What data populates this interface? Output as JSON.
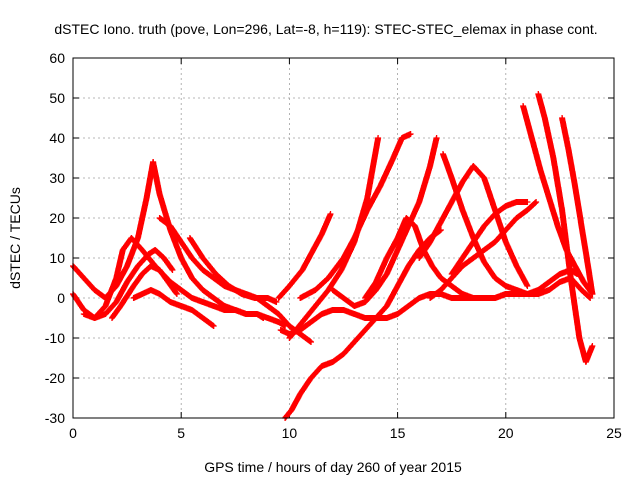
{
  "chart_data": {
    "type": "scatter",
    "title": "dSTEC Iono. truth (pove, Lon=296, Lat=-8, h=119): STEC-STEC_elemax in phase cont.",
    "xlabel": "GPS time / hours of day 260 of year 2015",
    "ylabel": "dSTEC  / TECUs",
    "xlim": [
      0,
      25
    ],
    "ylim": [
      -30,
      60
    ],
    "xticks": [
      "0",
      "5",
      "10",
      "15",
      "20",
      "25"
    ],
    "yticks": [
      "-30",
      "-20",
      "-10",
      "0",
      "10",
      "20",
      "30",
      "40",
      "50",
      "60"
    ],
    "grid": true,
    "marker": "plus",
    "color": "#ff0000",
    "series": [
      {
        "x": [
          0.0,
          0.5,
          1.0,
          1.5,
          2.0,
          2.5,
          3.0,
          3.4,
          3.7
        ],
        "y": [
          8,
          5,
          2,
          0,
          3,
          8,
          15,
          25,
          34
        ]
      },
      {
        "x": [
          3.7,
          4.0,
          4.5,
          5.0,
          5.5,
          6.0,
          6.5,
          7.0,
          7.5,
          8.0,
          8.5,
          9.0,
          9.5,
          9.8
        ],
        "y": [
          34,
          26,
          17,
          10,
          5,
          2,
          0,
          -2,
          -3,
          -4,
          -4,
          -5,
          -6,
          -7
        ]
      },
      {
        "x": [
          0.0,
          0.5,
          1.0,
          1.5,
          2.0,
          2.5,
          3.0,
          3.5,
          3.8,
          4.2,
          4.6
        ],
        "y": [
          1,
          -3,
          -5,
          -4,
          -1,
          4,
          8,
          11,
          12,
          10,
          7
        ]
      },
      {
        "x": [
          0.5,
          1.0,
          1.5,
          2.0,
          2.3,
          2.7,
          3.2,
          3.8,
          4.5,
          5.0,
          5.5,
          6.0,
          6.5,
          7.0,
          7.5,
          8.0,
          8.5,
          8.8
        ],
        "y": [
          -4,
          -5,
          -2,
          5,
          12,
          15,
          12,
          8,
          4,
          2,
          0,
          -1,
          -2,
          -3,
          -3,
          -4,
          -4,
          -5
        ]
      },
      {
        "x": [
          1.8,
          2.2,
          2.8,
          3.2,
          3.6,
          4.0,
          4.4,
          4.8
        ],
        "y": [
          -5,
          -2,
          3,
          6,
          8,
          7,
          4,
          1
        ]
      },
      {
        "x": [
          2.8,
          3.2,
          3.6,
          4.0,
          4.5,
          5.0,
          5.5,
          6.0,
          6.5
        ],
        "y": [
          0,
          1,
          2,
          1,
          -1,
          -2,
          -3,
          -5,
          -7
        ]
      },
      {
        "x": [
          4.0,
          4.5,
          5.0,
          5.5,
          6.0,
          6.5,
          7.0,
          7.5,
          8.0,
          8.5,
          9.0,
          9.5,
          10.0,
          10.5,
          11.0
        ],
        "y": [
          20,
          18,
          14,
          10,
          7,
          5,
          3,
          2,
          1,
          0,
          -2,
          -4,
          -7,
          -9,
          -11
        ]
      },
      {
        "x": [
          5.4,
          6.0,
          6.6,
          7.2,
          7.8,
          8.4,
          9.0,
          9.4
        ],
        "y": [
          15,
          10,
          6,
          3,
          1,
          0,
          0,
          -1
        ]
      },
      {
        "x": [
          9.6,
          10.0,
          10.5,
          11.0,
          11.5,
          12.0,
          12.5,
          13.0,
          13.5,
          14.0,
          14.5,
          15.0,
          15.5,
          16.0,
          16.5,
          17.0,
          17.5,
          18.0,
          18.5,
          19.0,
          19.5,
          20.0,
          20.5,
          21.0,
          21.5,
          22.0,
          22.5,
          23.0,
          23.3
        ],
        "y": [
          -8,
          -9,
          -8,
          -6,
          -4,
          -3,
          -3,
          -4,
          -5,
          -5,
          -5,
          -4,
          -2,
          0,
          1,
          1,
          0,
          0,
          0,
          0,
          0,
          1,
          1,
          1,
          2,
          4,
          6,
          7,
          6
        ]
      },
      {
        "x": [
          9.8,
          10.1,
          10.5,
          11.0,
          11.5,
          12.0,
          12.5,
          13.0,
          13.5,
          14.0,
          14.5,
          15.0,
          15.5,
          16.0,
          16.5,
          17.0
        ],
        "y": [
          -30,
          -28,
          -24,
          -20,
          -17,
          -16,
          -14,
          -11,
          -8,
          -5,
          -2,
          3,
          8,
          12,
          15,
          17
        ]
      },
      {
        "x": [
          10.0,
          10.6,
          11.2,
          11.8,
          12.4,
          13.0,
          13.6,
          14.1
        ],
        "y": [
          -10,
          -6,
          -2,
          2,
          7,
          14,
          25,
          40
        ]
      },
      {
        "x": [
          10.5,
          11.2,
          11.8,
          12.5,
          13.0,
          13.6,
          14.2,
          14.8,
          15.2,
          15.6
        ],
        "y": [
          0,
          2,
          5,
          10,
          15,
          22,
          28,
          35,
          40,
          41
        ]
      },
      {
        "x": [
          9.5,
          10.0,
          10.6,
          11.0,
          11.5,
          11.9
        ],
        "y": [
          0,
          3,
          7,
          11,
          16,
          21
        ]
      },
      {
        "x": [
          12.0,
          12.5,
          13.0,
          13.5,
          14.0,
          14.5,
          15.0,
          15.5,
          16.0,
          16.5,
          16.8
        ],
        "y": [
          2,
          0,
          -2,
          -1,
          2,
          6,
          12,
          18,
          24,
          33,
          40
        ]
      },
      {
        "x": [
          13.5,
          14.0,
          14.5,
          15.0,
          15.4,
          15.8,
          16.2,
          16.6,
          17.0,
          17.5,
          18.0,
          18.5,
          19.0,
          19.5,
          20.0
        ],
        "y": [
          0,
          4,
          10,
          15,
          20,
          18,
          12,
          8,
          5,
          3,
          1,
          0,
          0,
          0,
          1
        ]
      },
      {
        "x": [
          16.0,
          16.5,
          17.0,
          17.5,
          18.0,
          18.5,
          19.0,
          19.5,
          20.0,
          20.5,
          21.0
        ],
        "y": [
          10,
          14,
          19,
          24,
          29,
          33,
          30,
          22,
          14,
          8,
          3
        ]
      },
      {
        "x": [
          17.1,
          17.5,
          18.0,
          18.5,
          19.0,
          19.5,
          20.0,
          20.5,
          21.0,
          21.5,
          22.0,
          22.5,
          23.0,
          23.5,
          23.9
        ],
        "y": [
          36,
          30,
          22,
          15,
          9,
          5,
          3,
          2,
          1,
          1,
          2,
          4,
          5,
          2,
          0
        ]
      },
      {
        "x": [
          16.5,
          17.0,
          17.5,
          18.0,
          18.5,
          19.0,
          19.5,
          20.0,
          20.5,
          21.0,
          21.4
        ],
        "y": [
          0,
          2,
          5,
          8,
          10,
          12,
          14,
          17,
          20,
          22,
          24
        ]
      },
      {
        "x": [
          17.5,
          18.0,
          18.5,
          19.0,
          19.5,
          20.0,
          20.5,
          21.0
        ],
        "y": [
          6,
          10,
          14,
          18,
          21,
          23,
          24,
          24
        ]
      },
      {
        "x": [
          20.8,
          21.2,
          21.6,
          22.0,
          22.4,
          22.8,
          23.2,
          23.6,
          24.0
        ],
        "y": [
          48,
          40,
          32,
          25,
          18,
          12,
          8,
          4,
          1
        ]
      },
      {
        "x": [
          21.5,
          21.8,
          22.2,
          22.6,
          23.0,
          23.4,
          23.7,
          24.0
        ],
        "y": [
          51,
          45,
          35,
          22,
          5,
          -10,
          -16,
          -12
        ]
      },
      {
        "x": [
          22.6,
          22.9,
          23.2,
          23.5,
          23.8,
          24.0
        ],
        "y": [
          45,
          37,
          28,
          18,
          8,
          1
        ]
      }
    ]
  }
}
